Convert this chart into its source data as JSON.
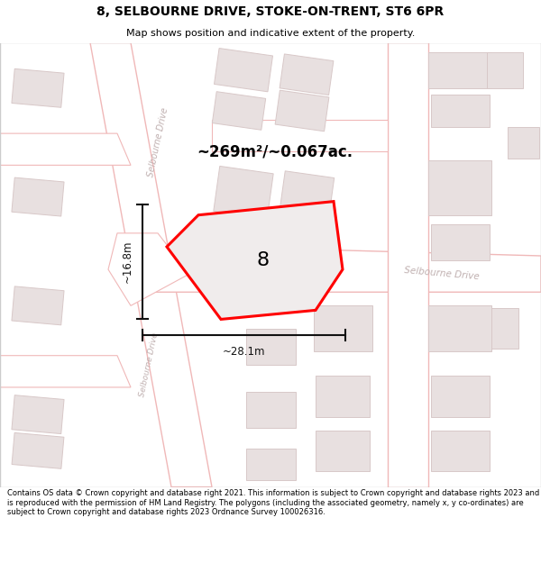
{
  "title": "8, SELBOURNE DRIVE, STOKE-ON-TRENT, ST6 6PR",
  "subtitle": "Map shows position and indicative extent of the property.",
  "area_label": "~269m²/~0.067ac.",
  "plot_number": "8",
  "width_label": "~28.1m",
  "height_label": "~16.8m",
  "footer": "Contains OS data © Crown copyright and database right 2021. This information is subject to Crown copyright and database rights 2023 and is reproduced with the permission of HM Land Registry. The polygons (including the associated geometry, namely x, y co-ordinates) are subject to Crown copyright and database rights 2023 Ordnance Survey 100026316.",
  "map_bg": "#f9f5f5",
  "road_fill": "#ffffff",
  "road_stroke": "#f0b8b8",
  "block_fill": "#e8e0e0",
  "block_stroke": "#d8c8c8",
  "building_fill": "#e0d8d8",
  "building_stroke": "#d0c0c0",
  "plot_fill": "#f0ecec",
  "plot_stroke": "#ff0000",
  "road_label_color": "#c0b0b0",
  "dim_color": "#111111",
  "title_fontsize": 10,
  "subtitle_fontsize": 8,
  "footer_fontsize": 6.0,
  "area_fontsize": 12,
  "plot_label_fontsize": 16,
  "road_label_fontsize": 7
}
